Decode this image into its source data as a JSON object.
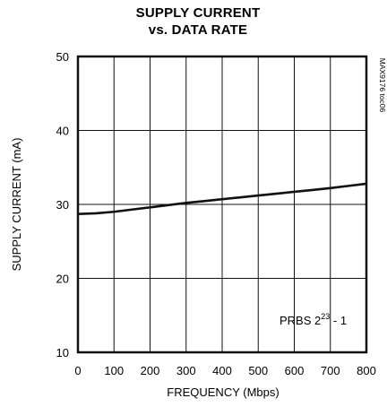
{
  "chart_data": {
    "type": "line",
    "title_line1": "SUPPLY CURRENT",
    "title_line2": "vs. DATA RATE",
    "xlabel": "FREQUENCY (Mbps)",
    "ylabel": "SUPPLY CURRENT (mA)",
    "xlim": [
      0,
      800
    ],
    "ylim": [
      10,
      50
    ],
    "x_ticks": [
      0,
      100,
      200,
      300,
      400,
      500,
      600,
      700,
      800
    ],
    "y_ticks": [
      10,
      20,
      30,
      40,
      50
    ],
    "x_tick_labels": [
      "0",
      "100",
      "200",
      "300",
      "400",
      "500",
      "600",
      "700",
      "800"
    ],
    "y_tick_labels": [
      "10",
      "20",
      "30",
      "40",
      "50"
    ],
    "grid": true,
    "series": [
      {
        "x": [
          0,
          50,
          100,
          150,
          200,
          250,
          300,
          350,
          400,
          450,
          500,
          550,
          600,
          650,
          700,
          750,
          800
        ],
        "y": [
          28.7,
          28.8,
          29.0,
          29.3,
          29.6,
          29.9,
          30.2,
          30.45,
          30.7,
          30.95,
          31.2,
          31.45,
          31.7,
          31.95,
          32.2,
          32.5,
          32.8
        ]
      }
    ],
    "annotation": {
      "base": "PRBS 2",
      "superscript": "23",
      "suffix": " - 1"
    },
    "figure_code": "MAX9176 toc06"
  }
}
